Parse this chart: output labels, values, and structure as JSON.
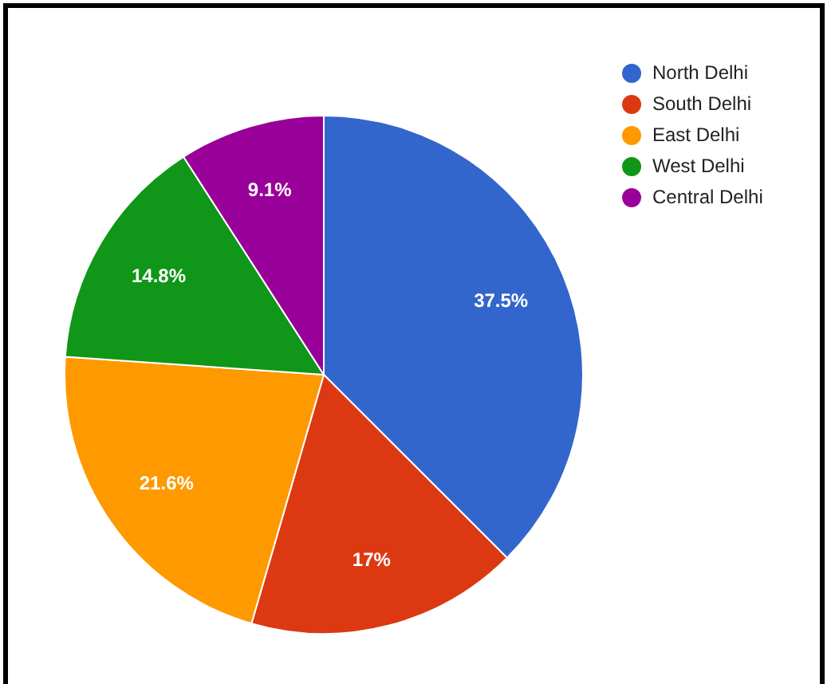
{
  "chart_data": {
    "type": "pie",
    "categories": [
      "North Delhi",
      "South Delhi",
      "East Delhi",
      "West Delhi",
      "Central Delhi"
    ],
    "values": [
      37.5,
      17,
      21.6,
      14.8,
      9.1
    ],
    "value_labels": [
      "37.5%",
      "17%",
      "21.6%",
      "14.8%",
      "9.1%"
    ],
    "colors": [
      "#3366cc",
      "#dc3912",
      "#ff9900",
      "#109618",
      "#990099"
    ],
    "legend": "top right"
  }
}
